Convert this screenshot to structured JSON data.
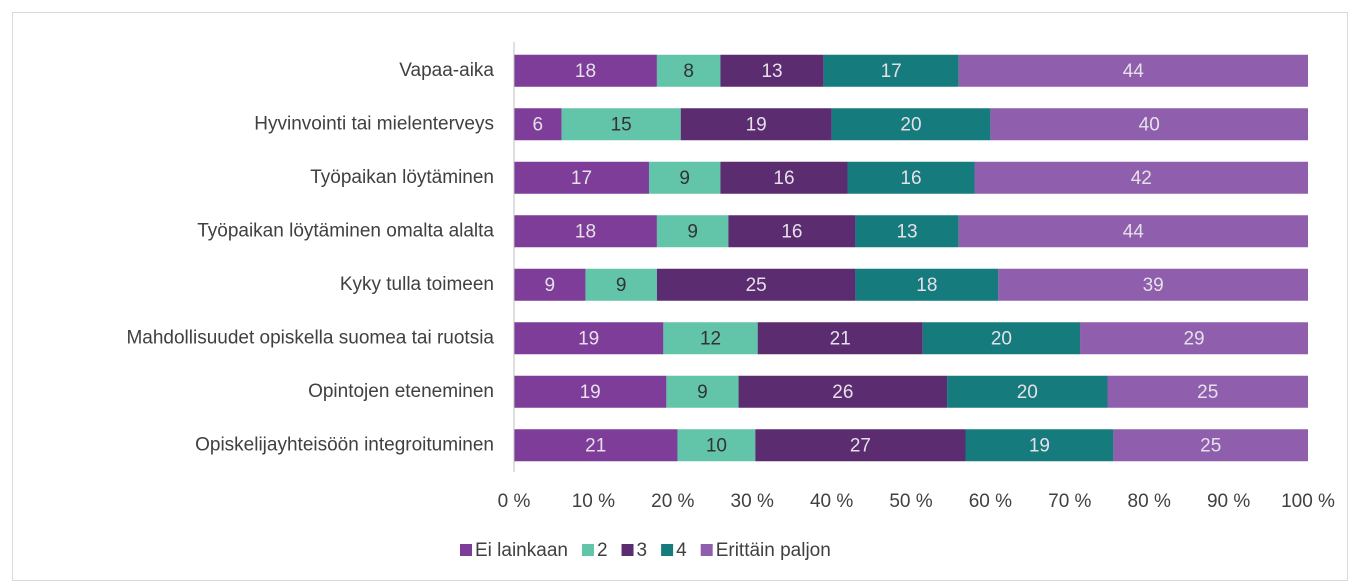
{
  "chart_data": {
    "type": "bar",
    "orientation": "horizontal",
    "stacking": "percent",
    "categories": [
      "Vapaa-aika",
      "Hyvinvointi tai mielenterveys",
      "Työpaikan löytäminen",
      "Työpaikan löytäminen omalta alalta",
      "Kyky tulla toimeen",
      "Mahdollisuudet opiskella suomea tai ruotsia",
      "Opintojen eteneminen",
      "Opiskelijayhteisöön integroituminen"
    ],
    "series": [
      {
        "name": "Ei lainkaan",
        "color": "#7d3d98",
        "label_color": "#e6e0ea",
        "values": [
          18,
          6,
          17,
          18,
          9,
          19,
          19,
          21
        ]
      },
      {
        "name": "2",
        "color": "#62c4a9",
        "label_color": "#333333",
        "values": [
          8,
          15,
          9,
          9,
          9,
          12,
          9,
          10
        ]
      },
      {
        "name": "3",
        "color": "#5b2c6f",
        "label_color": "#e6e0ea",
        "values": [
          13,
          19,
          16,
          16,
          25,
          21,
          26,
          27
        ]
      },
      {
        "name": "4",
        "color": "#157b7c",
        "label_color": "#e6e0ea",
        "values": [
          17,
          20,
          16,
          13,
          18,
          20,
          20,
          19
        ]
      },
      {
        "name": "Erittäin paljon",
        "color": "#8f5fad",
        "label_color": "#e6e0ea",
        "values": [
          44,
          40,
          42,
          44,
          39,
          29,
          25,
          25
        ]
      }
    ],
    "xlim": [
      0,
      100
    ],
    "xticks": [
      {
        "value": 0,
        "label": "0 %"
      },
      {
        "value": 10,
        "label": "10 %"
      },
      {
        "value": 20,
        "label": "20 %"
      },
      {
        "value": 30,
        "label": "30 %"
      },
      {
        "value": 40,
        "label": "40 %"
      },
      {
        "value": 50,
        "label": "50 %"
      },
      {
        "value": 60,
        "label": "60 %"
      },
      {
        "value": 70,
        "label": "70 %"
      },
      {
        "value": 80,
        "label": "80 %"
      },
      {
        "value": 90,
        "label": "90 %"
      },
      {
        "value": 100,
        "label": "100 %"
      }
    ],
    "legend": "bottom"
  }
}
